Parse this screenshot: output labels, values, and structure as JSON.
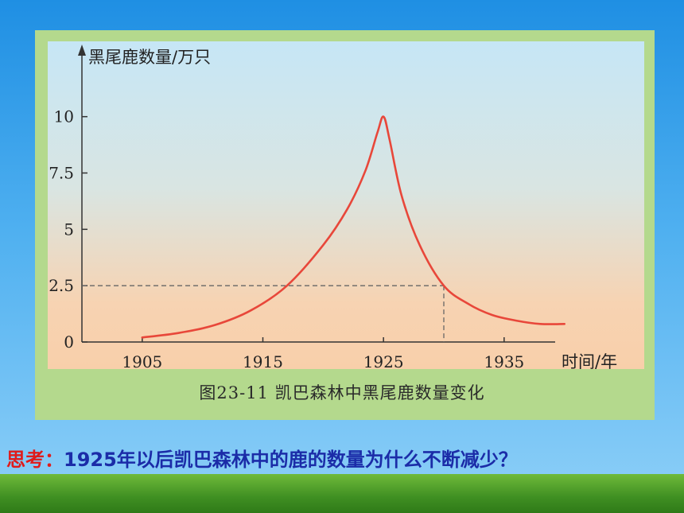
{
  "chart_data": {
    "type": "line",
    "ylabel": "黑尾鹿数量/万只",
    "xlabel": "时间/年",
    "y_ticks": [
      "0",
      "2.5",
      "5",
      "7.5",
      "10"
    ],
    "x_ticks": [
      "1905",
      "1915",
      "1925",
      "1935"
    ],
    "xlim": [
      1900,
      1942
    ],
    "ylim": [
      0,
      10.8
    ],
    "grid": false,
    "series": [
      {
        "x": [
          1905,
          1908,
          1911,
          1914,
          1917,
          1920,
          1922,
          1923.5,
          1924.5,
          1925,
          1925.5,
          1926.5,
          1928,
          1930,
          1932,
          1934,
          1936,
          1938,
          1940
        ],
        "y": [
          0.2,
          0.4,
          0.75,
          1.4,
          2.5,
          4.3,
          5.9,
          7.6,
          9.3,
          10,
          9.0,
          6.5,
          4.3,
          2.5,
          1.7,
          1.2,
          0.95,
          0.8,
          0.8
        ]
      }
    ],
    "annotations": [
      {
        "type": "dashed-guide",
        "x": 1930,
        "y": 2.5
      }
    ],
    "colors": {
      "line": "#e8473a",
      "guide": "#666666"
    }
  },
  "caption": "图23-11   凯巴森林中黑尾鹿数量变化",
  "question": {
    "prefix": "思考：",
    "text": "1925年以后凯巴森林中的鹿的数量为什么不断减少？"
  },
  "theme": {
    "sky": "#1f8fe3",
    "frame": "#b4d98d",
    "grass": "#3f8f22"
  }
}
